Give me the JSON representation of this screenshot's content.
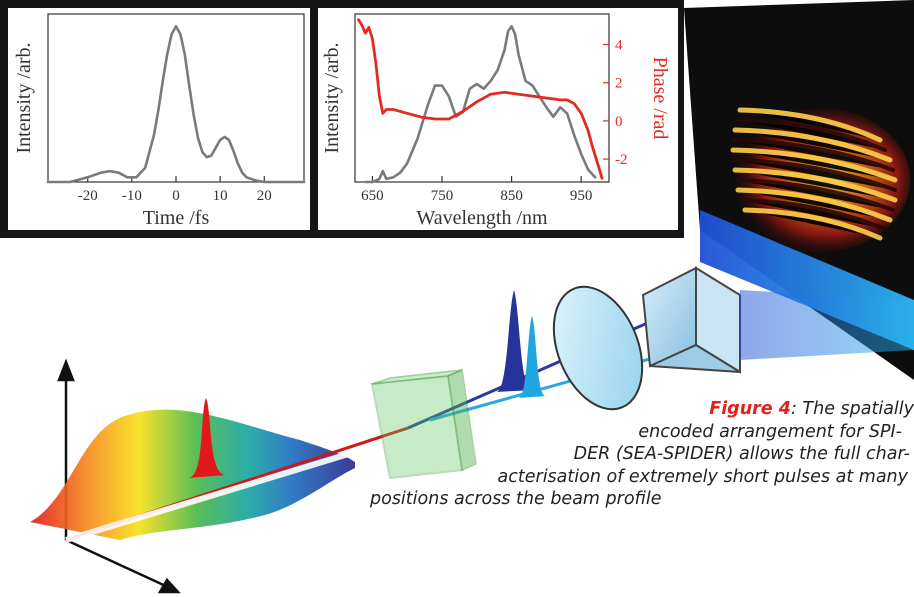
{
  "chart_data": [
    {
      "type": "line",
      "title": "",
      "xlabel": "Time /fs",
      "ylabel": "Intensity /arb.",
      "xlim": [
        -29,
        29
      ],
      "ylim": [
        0,
        1.08
      ],
      "xticks": [
        -20,
        -10,
        0,
        10,
        20
      ],
      "xtick_labels": [
        "-20",
        "-10",
        "0",
        "10",
        "20"
      ],
      "grid": false,
      "series": [
        {
          "color": "#7a7a7a",
          "x": [
            -29,
            -24,
            -20,
            -17,
            -15,
            -13,
            -11,
            -9,
            -7,
            -5,
            -4,
            -3,
            -2,
            -1,
            0,
            1,
            2,
            3,
            4,
            5,
            6,
            7,
            8,
            9,
            10,
            11,
            12,
            13,
            14,
            15,
            16,
            18,
            20,
            24,
            29
          ],
          "y": [
            0.0,
            0.0,
            0.03,
            0.06,
            0.07,
            0.06,
            0.03,
            0.03,
            0.09,
            0.3,
            0.46,
            0.65,
            0.82,
            0.95,
            1.0,
            0.95,
            0.82,
            0.62,
            0.43,
            0.28,
            0.19,
            0.16,
            0.17,
            0.22,
            0.27,
            0.29,
            0.27,
            0.2,
            0.12,
            0.06,
            0.03,
            0.01,
            0.0,
            0.0,
            0.0
          ]
        }
      ]
    },
    {
      "type": "line",
      "title": "",
      "xlabel": "Wavelength /nm",
      "ylabel": "Intensity /arb.",
      "y2label": "Phase /rad",
      "xlim": [
        625,
        990
      ],
      "ylim": [
        0,
        1.08
      ],
      "y2lim": [
        -3.2,
        5.6
      ],
      "xticks": [
        650,
        750,
        850,
        950
      ],
      "xtick_labels": [
        "650",
        "750",
        "850",
        "950"
      ],
      "y2ticks": [
        -2,
        0,
        2,
        4
      ],
      "y2tick_labels": [
        "-2",
        "0",
        "2",
        "4"
      ],
      "grid": false,
      "series": [
        {
          "axis": "left",
          "color": "#7a7a7a",
          "x": [
            640,
            650,
            660,
            665,
            670,
            680,
            690,
            700,
            715,
            730,
            740,
            750,
            760,
            770,
            780,
            790,
            800,
            810,
            820,
            830,
            840,
            845,
            850,
            855,
            860,
            870,
            880,
            890,
            900,
            910,
            920,
            930,
            940,
            950,
            960,
            970
          ],
          "y": [
            0.0,
            0.0,
            0.02,
            0.07,
            0.02,
            0.03,
            0.06,
            0.12,
            0.28,
            0.5,
            0.62,
            0.62,
            0.55,
            0.42,
            0.45,
            0.6,
            0.63,
            0.6,
            0.65,
            0.72,
            0.85,
            0.97,
            1.0,
            0.95,
            0.82,
            0.65,
            0.62,
            0.55,
            0.48,
            0.42,
            0.48,
            0.44,
            0.3,
            0.18,
            0.08,
            0.03
          ]
        },
        {
          "axis": "right",
          "color": "#e32a20",
          "x": [
            630,
            635,
            640,
            645,
            650,
            655,
            660,
            665,
            670,
            680,
            700,
            720,
            740,
            760,
            780,
            800,
            820,
            840,
            860,
            880,
            900,
            920,
            930,
            940,
            950,
            960,
            965,
            970,
            975,
            980
          ],
          "y": [
            5.3,
            5.0,
            4.6,
            4.9,
            4.3,
            3.0,
            1.3,
            0.4,
            0.6,
            0.6,
            0.4,
            0.2,
            0.1,
            0.1,
            0.5,
            1.0,
            1.4,
            1.5,
            1.4,
            1.3,
            1.2,
            1.1,
            1.1,
            0.9,
            0.4,
            -0.5,
            -1.2,
            -1.8,
            -2.4,
            -3.0
          ]
        }
      ]
    }
  ],
  "caption": {
    "lead": "Figure 4",
    "lines": [
      ": The spatially",
      "encoded arrangement for SPI-",
      "DER (SEA-SPIDER) allows the full char-",
      "acterisation of extremely short pulses at many",
      "positions across the beam profile"
    ]
  },
  "colors": {
    "intensity": "#7a7a7a",
    "phase": "#e32a20",
    "panel_frame": "#151515",
    "crystal": "#5ec75e",
    "lens": "#a8dcf0",
    "prism": "#a9cfe6",
    "pulse_red": "#e3171c",
    "pulse_blue": "#25349a",
    "pulse_cyan": "#1fa6e0"
  }
}
